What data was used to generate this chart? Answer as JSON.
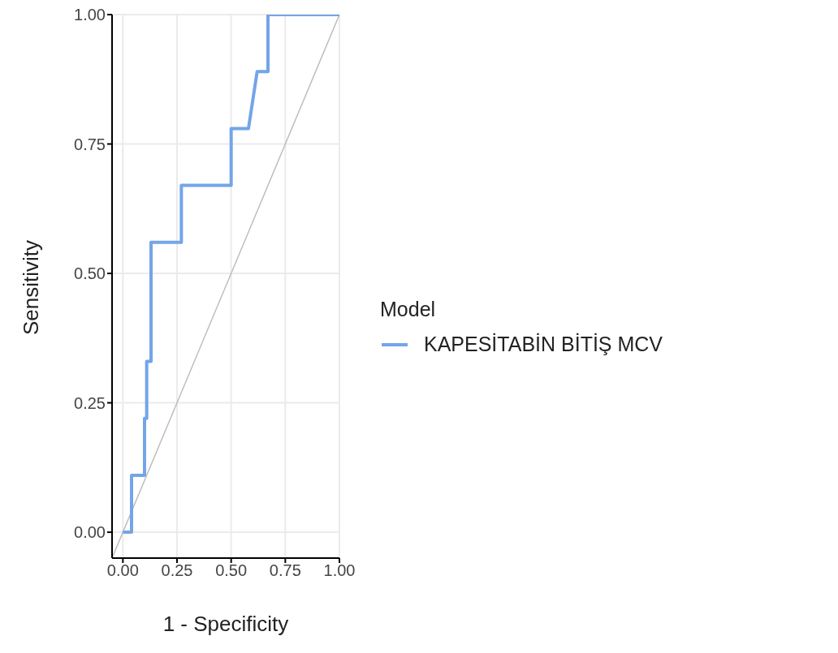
{
  "chart_data": {
    "type": "line",
    "xlabel": "1 - Specificity",
    "ylabel": "Sensitivity",
    "legend_title": "Model",
    "xlim": [
      -0.05,
      1.0
    ],
    "ylim": [
      -0.05,
      1.0
    ],
    "xticks": [
      {
        "value": 0,
        "label": "0.00"
      },
      {
        "value": 0.25,
        "label": "0.25"
      },
      {
        "value": 0.5,
        "label": "0.50"
      },
      {
        "value": 0.75,
        "label": "0.75"
      },
      {
        "value": 1,
        "label": "1.00"
      }
    ],
    "yticks": [
      {
        "value": 0,
        "label": "0.00"
      },
      {
        "value": 0.25,
        "label": "0.25"
      },
      {
        "value": 0.5,
        "label": "0.50"
      },
      {
        "value": 0.75,
        "label": "0.75"
      },
      {
        "value": 1,
        "label": "1.00"
      }
    ],
    "grid": true,
    "legend": "right",
    "series": [
      {
        "color": "#bebebe",
        "x": [
          -0.05,
          1.0
        ],
        "values": [
          -0.05,
          1.0
        ]
      },
      {
        "name": "KAPESİTABİN BİTİŞ MCV",
        "color": "#73a5e8",
        "x": [
          0,
          0.04,
          0.04,
          0.1,
          0.1,
          0.11,
          0.11,
          0.13,
          0.13,
          0.27,
          0.27,
          0.5,
          0.5,
          0.58,
          0.62,
          0.67,
          0.67,
          1.0
        ],
        "values": [
          0,
          0,
          0.11,
          0.11,
          0.22,
          0.22,
          0.33,
          0.33,
          0.56,
          0.56,
          0.67,
          0.67,
          0.78,
          0.78,
          0.89,
          0.89,
          1.0,
          1.0
        ]
      }
    ]
  }
}
